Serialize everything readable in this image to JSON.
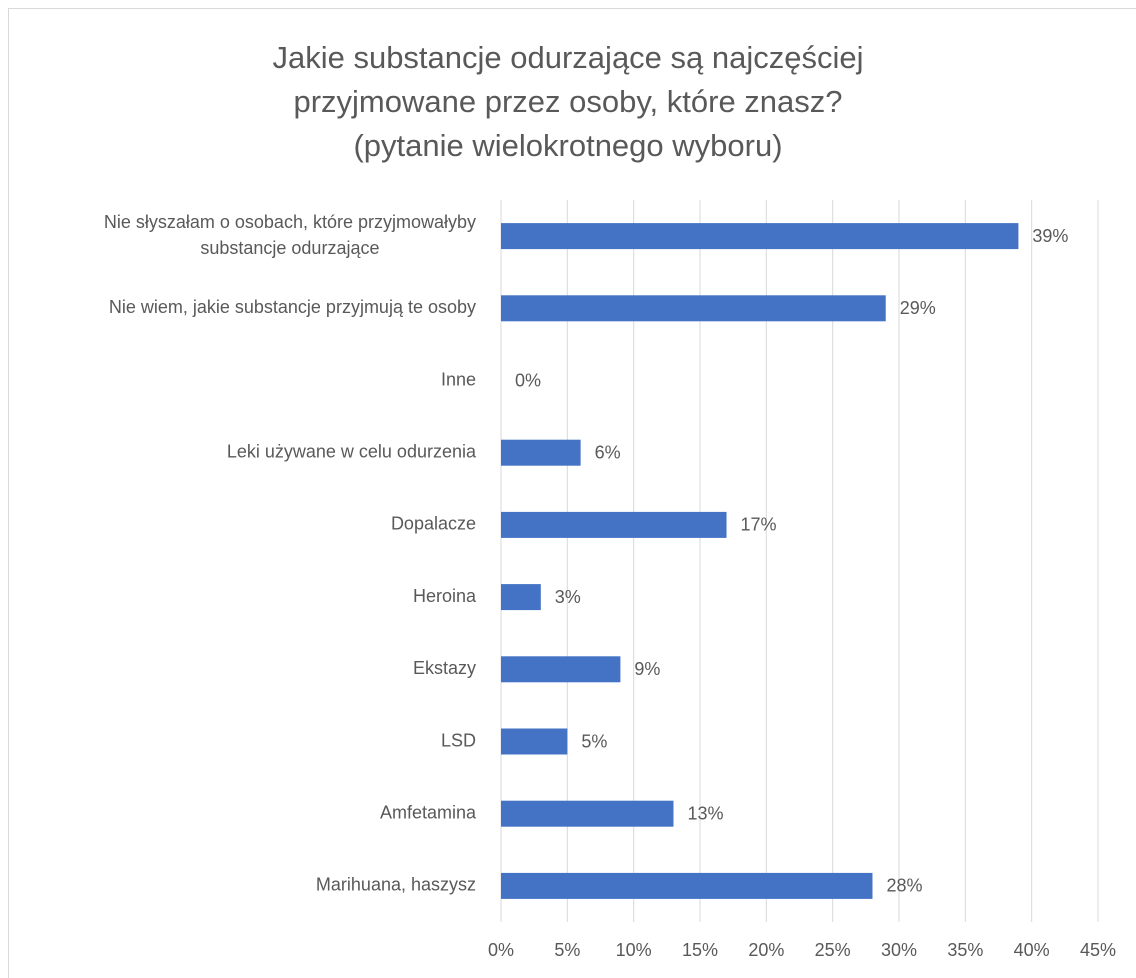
{
  "chart_data": {
    "type": "barh",
    "title": "Jakie substancje odurzające są najczęściej\nprzyjmowane przez osoby, które znasz?\n(pytanie wielokrotnego wyboru)",
    "categories": [
      "Nie słyszałam o osobach, które przyjmowałyby\nsubstancje odurzające",
      "Nie wiem, jakie substancje przyjmują te osoby",
      "Inne",
      "Leki używane w celu odurzenia",
      "Dopalacze",
      "Heroina",
      "Ekstazy",
      "LSD",
      "Amfetamina",
      "Marihuana, haszysz"
    ],
    "values": [
      39,
      29,
      0,
      6,
      17,
      3,
      9,
      5,
      13,
      28
    ],
    "value_labels": [
      "39%",
      "29%",
      "0%",
      "6%",
      "17%",
      "3%",
      "9%",
      "5%",
      "13%",
      "28%"
    ],
    "color": "#4472c4",
    "xlim": [
      0,
      45
    ],
    "xticks": [
      {
        "value": 0,
        "label": "0%"
      },
      {
        "value": 5,
        "label": "5%"
      },
      {
        "value": 10,
        "label": "10%"
      },
      {
        "value": 15,
        "label": "15%"
      },
      {
        "value": 20,
        "label": "20%"
      },
      {
        "value": 25,
        "label": "25%"
      },
      {
        "value": 30,
        "label": "30%"
      },
      {
        "value": 35,
        "label": "35%"
      },
      {
        "value": 40,
        "label": "40%"
      },
      {
        "value": 45,
        "label": "45%"
      }
    ],
    "grid": true
  }
}
